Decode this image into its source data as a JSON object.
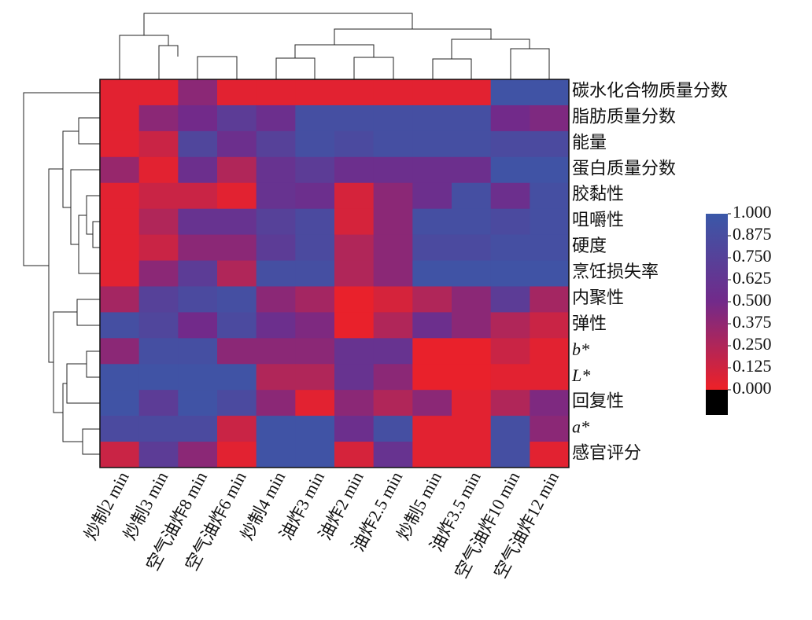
{
  "chart_data": {
    "type": "heatmap",
    "columns": [
      "炒制2 min",
      "炒制3 min",
      "空气油炸8 min",
      "空气油炸6 min",
      "炒制4 min",
      "油炸3 min",
      "油炸2 min",
      "油炸2.5 min",
      "炒制5 min",
      "油炸3.5 min",
      "空气油炸10 min",
      "空气油炸12 min"
    ],
    "rows": [
      "碳水化合物质量分数",
      "脂肪质量分数",
      "能量",
      "蛋白质量分数",
      "胶黏性",
      "咀嚼性",
      "硬度",
      "烹饪损失率",
      "内聚性",
      "弹性",
      "b*",
      "L*",
      "回复性",
      "a*",
      "感官评分"
    ],
    "values": [
      [
        0.05,
        0.05,
        0.4,
        0.05,
        0.05,
        0.05,
        0.05,
        0.05,
        0.05,
        0.05,
        0.95,
        0.95
      ],
      [
        0.05,
        0.4,
        0.5,
        0.7,
        0.55,
        0.9,
        0.9,
        0.9,
        0.9,
        0.9,
        0.5,
        0.45
      ],
      [
        0.05,
        0.15,
        0.8,
        0.55,
        0.75,
        0.9,
        0.85,
        0.9,
        0.9,
        0.9,
        0.85,
        0.85
      ],
      [
        0.35,
        0.05,
        0.55,
        0.25,
        0.6,
        0.7,
        0.55,
        0.55,
        0.55,
        0.55,
        0.95,
        0.95
      ],
      [
        0.05,
        0.15,
        0.15,
        0.05,
        0.6,
        0.55,
        0.1,
        0.4,
        0.55,
        0.9,
        0.55,
        0.9
      ],
      [
        0.05,
        0.25,
        0.6,
        0.6,
        0.75,
        0.85,
        0.1,
        0.4,
        0.9,
        0.9,
        0.85,
        0.9
      ],
      [
        0.05,
        0.15,
        0.4,
        0.4,
        0.7,
        0.85,
        0.25,
        0.4,
        0.85,
        0.85,
        0.9,
        0.9
      ],
      [
        0.05,
        0.4,
        0.7,
        0.25,
        0.9,
        0.9,
        0.25,
        0.4,
        0.95,
        0.95,
        0.95,
        0.95
      ],
      [
        0.3,
        0.75,
        0.85,
        0.9,
        0.4,
        0.3,
        0.02,
        0.1,
        0.25,
        0.4,
        0.7,
        0.3
      ],
      [
        0.9,
        0.8,
        0.5,
        0.85,
        0.55,
        0.45,
        0.02,
        0.25,
        0.55,
        0.4,
        0.25,
        0.15
      ],
      [
        0.4,
        0.9,
        0.9,
        0.4,
        0.4,
        0.4,
        0.6,
        0.6,
        0.02,
        0.02,
        0.15,
        0.05
      ],
      [
        0.95,
        0.95,
        0.95,
        0.95,
        0.25,
        0.25,
        0.6,
        0.4,
        0.02,
        0.02,
        0.05,
        0.05
      ],
      [
        0.95,
        0.7,
        0.95,
        0.85,
        0.4,
        0.05,
        0.4,
        0.25,
        0.4,
        0.05,
        0.25,
        0.45
      ],
      [
        0.85,
        0.85,
        0.85,
        0.15,
        0.95,
        0.95,
        0.55,
        0.9,
        0.05,
        0.05,
        0.9,
        0.4
      ],
      [
        0.15,
        0.7,
        0.4,
        0.05,
        0.95,
        0.95,
        0.1,
        0.6,
        0.05,
        0.05,
        0.9,
        0.05
      ]
    ],
    "zlim": [
      0,
      1
    ],
    "colors": [
      "#ee2127",
      "#722a8a",
      "#3a58a8"
    ],
    "zticks": [
      {
        "value": 1,
        "label": "1.000"
      },
      {
        "value": 0.875,
        "label": "0.875"
      },
      {
        "value": 0.75,
        "label": "0.750"
      },
      {
        "value": 0.625,
        "label": "0.625"
      },
      {
        "value": 0.5,
        "label": "0.500"
      },
      {
        "value": 0.375,
        "label": "0.375"
      },
      {
        "value": 0.25,
        "label": "0.250"
      },
      {
        "value": 0.125,
        "label": "0.125"
      },
      {
        "value": 0,
        "label": "0.000"
      }
    ]
  }
}
